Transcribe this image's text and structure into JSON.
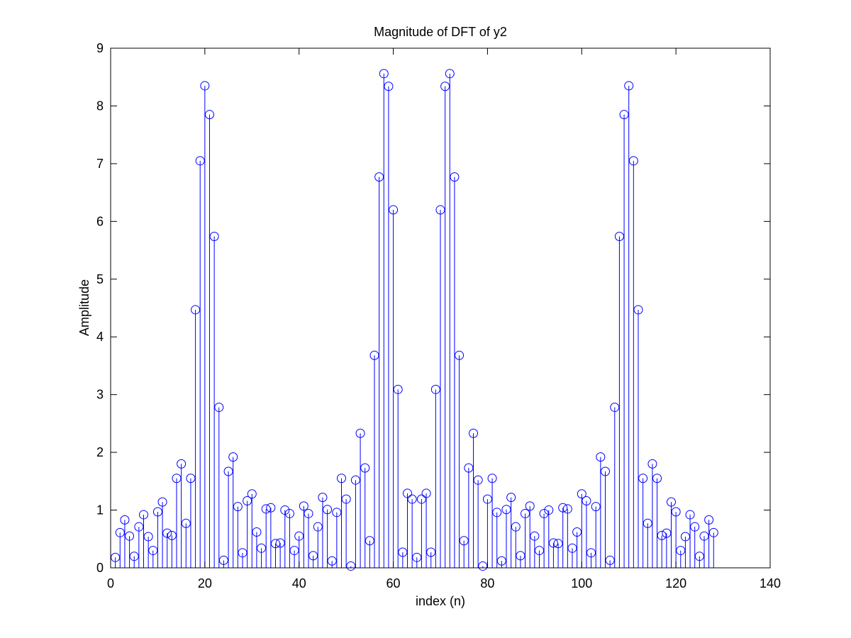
{
  "chart_data": {
    "type": "stem",
    "title": "Magnitude of DFT of y2",
    "xlabel": "index (n)",
    "ylabel": "Amplitude",
    "xlim": [
      0,
      140
    ],
    "ylim": [
      0,
      9
    ],
    "x_ticks": [
      0,
      20,
      40,
      60,
      80,
      100,
      120,
      140
    ],
    "y_ticks": [
      0,
      1,
      2,
      3,
      4,
      5,
      6,
      7,
      8,
      9
    ],
    "grid": false,
    "legend": "none",
    "marker": "open-circle",
    "color": "#0000ff",
    "x_start": 1,
    "values": [
      0.18,
      0.61,
      0.83,
      0.55,
      0.2,
      0.71,
      0.92,
      0.54,
      0.3,
      0.97,
      1.14,
      0.6,
      0.56,
      1.55,
      1.8,
      0.77,
      1.55,
      4.47,
      7.05,
      8.35,
      7.85,
      5.74,
      2.78,
      0.13,
      1.67,
      1.92,
      1.06,
      0.26,
      1.16,
      1.28,
      0.62,
      0.34,
      1.02,
      1.04,
      0.42,
      0.43,
      1.0,
      0.94,
      0.3,
      0.55,
      1.07,
      0.94,
      0.21,
      0.71,
      1.22,
      1.01,
      0.12,
      0.96,
      1.55,
      1.19,
      0.03,
      1.52,
      2.33,
      1.73,
      0.47,
      3.68,
      6.77,
      8.56,
      8.34,
      6.2,
      3.09,
      0.27,
      1.29,
      1.19,
      0.18,
      1.19,
      1.29,
      0.27,
      3.09,
      6.2,
      8.34,
      8.56,
      6.77,
      3.68,
      0.47,
      1.73,
      2.33,
      1.52,
      0.03,
      1.19,
      1.55,
      0.96,
      0.12,
      1.01,
      1.22,
      0.71,
      0.21,
      0.94,
      1.07,
      0.55,
      0.3,
      0.94,
      1.0,
      0.43,
      0.42,
      1.04,
      1.02,
      0.34,
      0.62,
      1.28,
      1.16,
      0.26,
      1.06,
      1.92,
      1.67,
      0.13,
      2.78,
      5.74,
      7.85,
      8.35,
      7.05,
      4.47,
      1.55,
      0.77,
      1.8,
      1.55,
      0.56,
      0.6,
      1.14,
      0.97,
      0.3,
      0.54,
      0.92,
      0.71,
      0.2,
      0.55,
      0.83,
      0.61
    ]
  }
}
